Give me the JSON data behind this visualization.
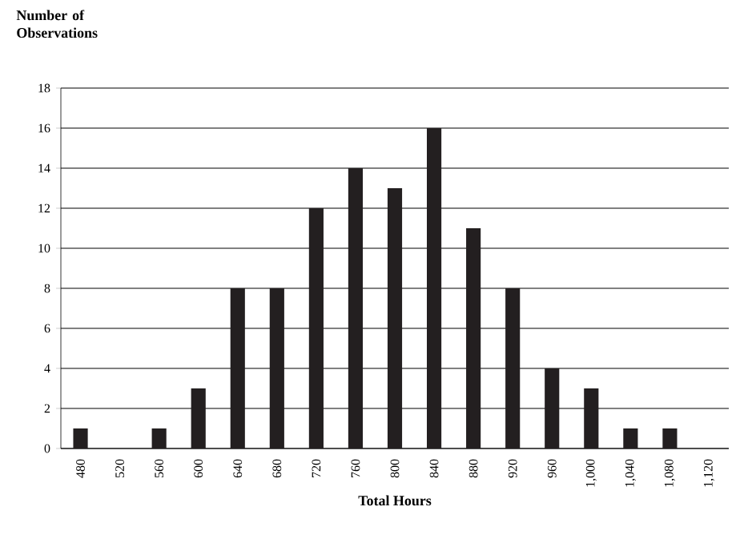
{
  "chart_data": {
    "type": "bar",
    "xlabel": "Total Hours",
    "ylabel": "Number of Observations",
    "categories": [
      "480",
      "520",
      "560",
      "600",
      "640",
      "680",
      "720",
      "760",
      "800",
      "840",
      "880",
      "920",
      "960",
      "1,000",
      "1,040",
      "1,080",
      "1,120"
    ],
    "values": [
      1,
      0,
      1,
      3,
      8,
      8,
      12,
      14,
      13,
      16,
      11,
      8,
      4,
      3,
      1,
      1,
      0
    ],
    "color": "#231f20",
    "ylim": [
      0,
      18
    ],
    "yticks": [
      0,
      2,
      4,
      6,
      8,
      10,
      12,
      14,
      16,
      18
    ],
    "grid": "y"
  }
}
